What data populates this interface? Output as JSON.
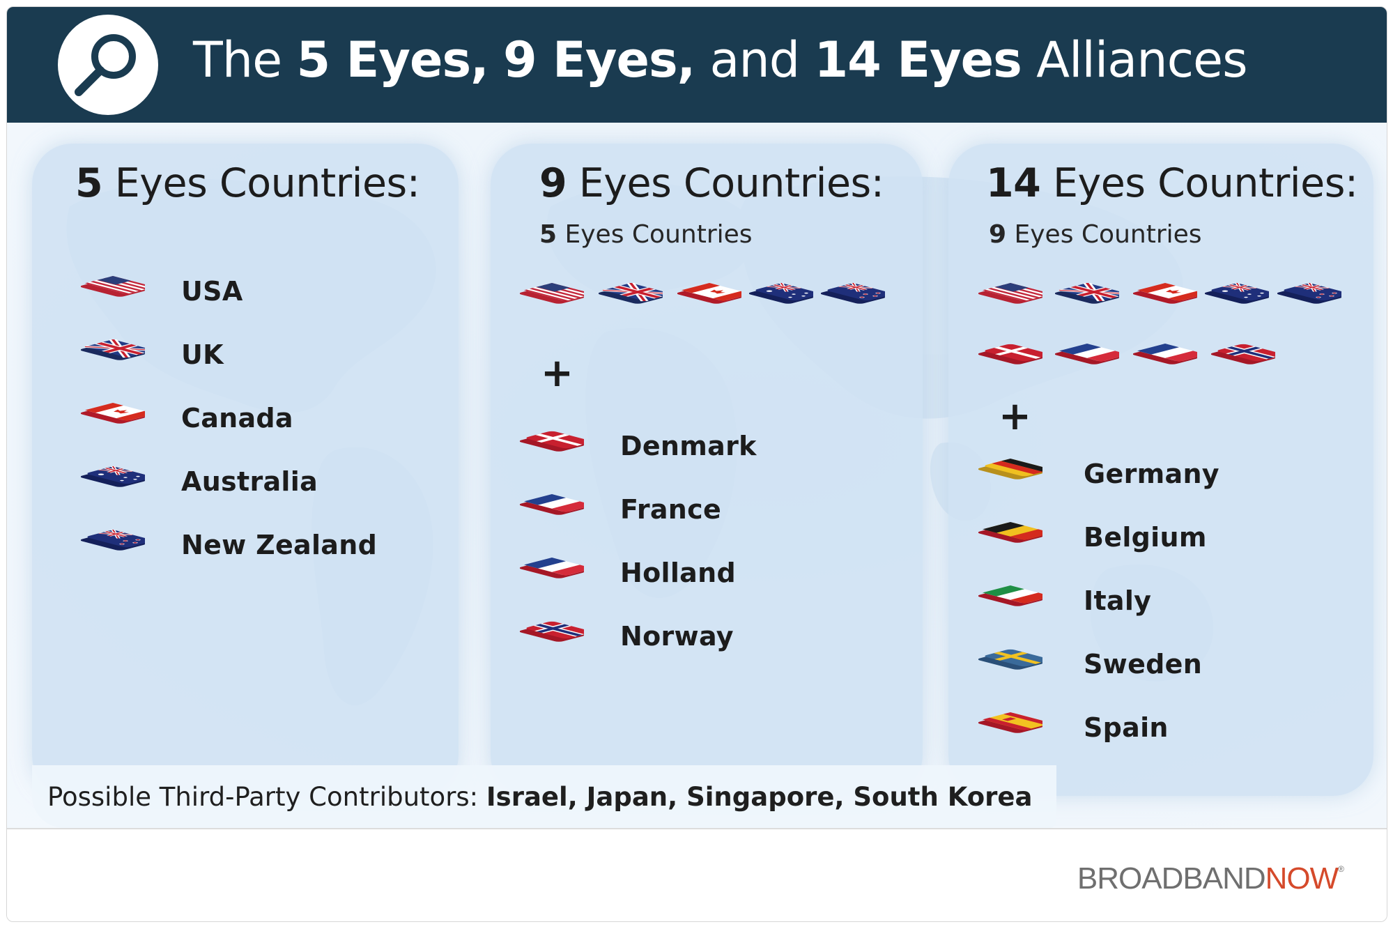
{
  "header": {
    "title_parts": [
      "The ",
      "5 Eyes,",
      " ",
      "9 Eyes,",
      " and ",
      "14 Eyes",
      " Alliances"
    ],
    "icon": "magnifying-glass-icon"
  },
  "panels": {
    "five": {
      "title_num": "5",
      "title_rest": " Eyes Countries:",
      "countries": [
        "USA",
        "UK",
        "Canada",
        "Australia",
        "New Zealand"
      ]
    },
    "nine": {
      "title_num": "9",
      "title_rest": " Eyes Countries:",
      "sub_num": "5",
      "sub_rest": " Eyes Countries",
      "plus": "+",
      "countries": [
        "Denmark",
        "France",
        "Holland",
        "Norway"
      ]
    },
    "fourteen": {
      "title_num": "14",
      "title_rest": " Eyes Countries:",
      "sub_num": "9",
      "sub_rest": " Eyes Countries",
      "plus": "+",
      "countries": [
        "Germany",
        "Belgium",
        "Italy",
        "Sweden",
        "Spain"
      ]
    }
  },
  "contributors": {
    "label": "Possible Third-Party Contributors: ",
    "names": "Israel, Japan, Singapore, South Korea"
  },
  "footer": {
    "logo_part1": "BROADBAND",
    "logo_part2": "NOW",
    "logo_mark": "®"
  },
  "colors": {
    "header_bg": "#1a3b50",
    "panel_bg": "#cfe1f3",
    "logo_grey": "#6f6f6f",
    "logo_accent": "#d54a2b"
  }
}
